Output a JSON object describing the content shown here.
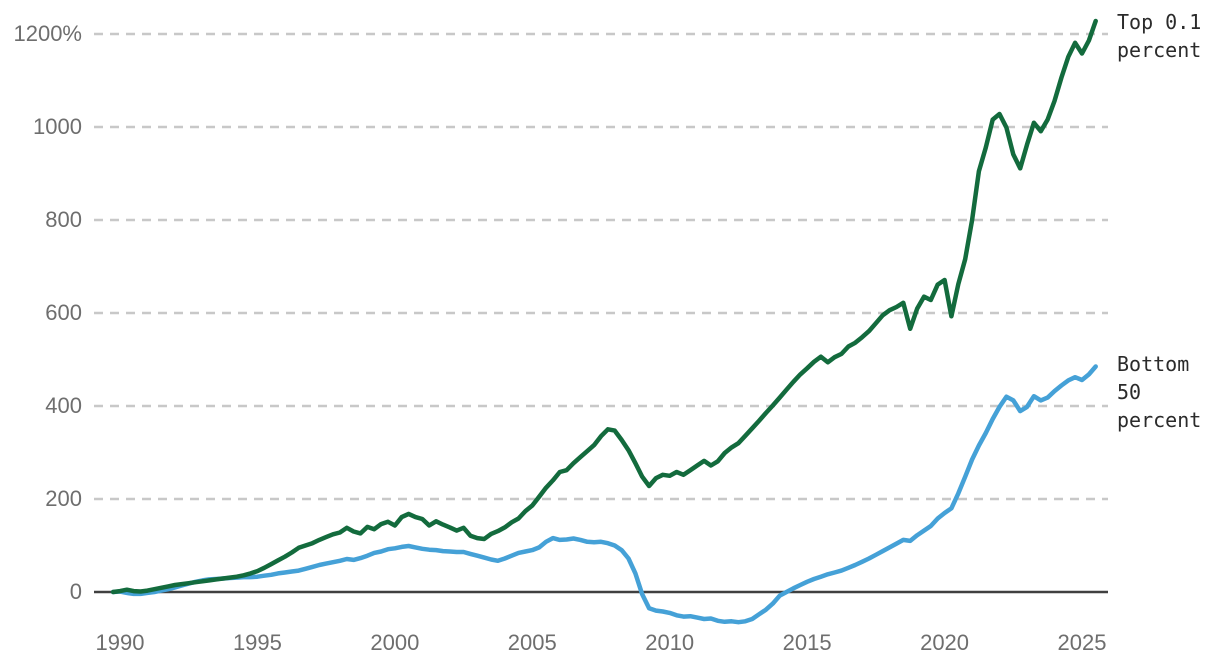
{
  "chart_data": {
    "type": "line",
    "title": "",
    "x_start": 1989.75,
    "x_step": 0.25,
    "x_end": 2025.5,
    "xlim": [
      1989.0,
      2026.4
    ],
    "ylim": [
      -80,
      1260
    ],
    "grid": "horizontal-dashed",
    "legend_position": "right-end-of-line",
    "x_ticks": [
      1990,
      1995,
      2000,
      2005,
      2010,
      2015,
      2020,
      2025
    ],
    "x_tick_labels": [
      "1990",
      "1995",
      "2000",
      "2005",
      "2010",
      "2015",
      "2020",
      "2025"
    ],
    "y_ticks": [
      0,
      200,
      400,
      600,
      800,
      1000,
      1200
    ],
    "y_tick_labels": [
      "0",
      "200",
      "400",
      "600",
      "800",
      "1000",
      "1200%"
    ],
    "colors": {
      "grid": "#c8c8c8",
      "zero_axis": "#404040",
      "tick_text": "#6e6e6e",
      "legend_text": "#2b2b2b"
    },
    "series": [
      {
        "name": "Bottom 50 percent",
        "label_lines": [
          "Bottom",
          "50",
          "percent"
        ],
        "color": "#45a1d7",
        "values": [
          0,
          1,
          -2,
          -4,
          -4,
          -2,
          0,
          3,
          6,
          10,
          14,
          18,
          22,
          25,
          27,
          28,
          29,
          30,
          31,
          32,
          32,
          33,
          35,
          37,
          40,
          42,
          44,
          46,
          50,
          54,
          58,
          61,
          64,
          67,
          71,
          69,
          73,
          78,
          84,
          87,
          92,
          94,
          97,
          99,
          96,
          93,
          91,
          90,
          88,
          87,
          86,
          86,
          82,
          78,
          74,
          70,
          67,
          72,
          78,
          84,
          87,
          90,
          96,
          108,
          116,
          112,
          113,
          115,
          112,
          108,
          107,
          108,
          105,
          100,
          90,
          72,
          40,
          -5,
          -35,
          -40,
          -42,
          -45,
          -50,
          -53,
          -52,
          -55,
          -58,
          -57,
          -62,
          -64,
          -63,
          -65,
          -63,
          -58,
          -48,
          -38,
          -25,
          -8,
          0,
          8,
          15,
          22,
          28,
          33,
          38,
          42,
          46,
          52,
          58,
          65,
          72,
          80,
          88,
          96,
          104,
          112,
          110,
          122,
          132,
          142,
          158,
          170,
          180,
          212,
          248,
          285,
          315,
          342,
          372,
          398,
          420,
          412,
          389,
          398,
          421,
          412,
          418,
          432,
          444,
          455,
          462,
          456,
          468,
          485
        ]
      },
      {
        "name": "Top 0.1 percent",
        "label_lines": [
          "Top 0.1",
          "percent"
        ],
        "color": "#136b3d",
        "values": [
          0,
          2,
          5,
          2,
          1,
          3,
          6,
          9,
          12,
          15,
          17,
          19,
          21,
          23,
          25,
          27,
          29,
          31,
          33,
          36,
          40,
          45,
          52,
          60,
          68,
          76,
          85,
          95,
          100,
          105,
          112,
          118,
          124,
          128,
          138,
          130,
          126,
          140,
          135,
          146,
          151,
          143,
          161,
          168,
          161,
          157,
          143,
          152,
          145,
          139,
          132,
          138,
          121,
          116,
          114,
          125,
          131,
          139,
          150,
          158,
          174,
          186,
          205,
          224,
          240,
          258,
          262,
          277,
          290,
          303,
          316,
          335,
          350,
          347,
          327,
          305,
          277,
          248,
          228,
          245,
          252,
          250,
          258,
          252,
          262,
          272,
          282,
          272,
          281,
          299,
          311,
          320,
          336,
          352,
          368,
          385,
          401,
          418,
          435,
          452,
          468,
          481,
          495,
          506,
          494,
          505,
          512,
          528,
          536,
          548,
          561,
          578,
          595,
          606,
          613,
          622,
          566,
          609,
          635,
          628,
          661,
          671,
          593,
          662,
          716,
          800,
          905,
          956,
          1016,
          1028,
          999,
          941,
          911,
          962,
          1009,
          991,
          1016,
          1056,
          1106,
          1151,
          1181,
          1158,
          1186,
          1228
        ]
      }
    ]
  }
}
